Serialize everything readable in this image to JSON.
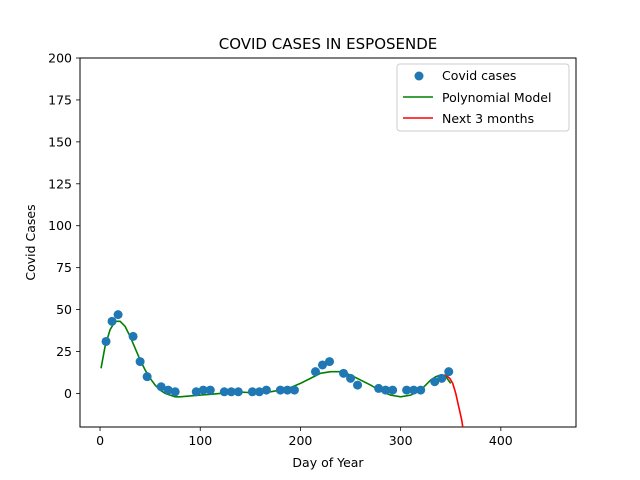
{
  "chart_data": {
    "type": "scatter",
    "title": "COVID CASES IN ESPOSENDE",
    "xlabel": "Day of Year",
    "ylabel": "Covid Cases",
    "xlim": [
      -20,
      475
    ],
    "ylim": [
      -20,
      200
    ],
    "xticks": [
      0,
      100,
      200,
      300,
      400
    ],
    "yticks": [
      0,
      25,
      50,
      75,
      100,
      125,
      150,
      175,
      200
    ],
    "legend_position": "top-right",
    "series": [
      {
        "name": "Covid cases",
        "kind": "markers",
        "color": "#1f77b4",
        "x": [
          6,
          12,
          18,
          33,
          40,
          47,
          61,
          68,
          75,
          96,
          103,
          110,
          124,
          131,
          138,
          152,
          159,
          166,
          180,
          187,
          194,
          215,
          222,
          229,
          243,
          250,
          257,
          278,
          285,
          292,
          306,
          313,
          320,
          334,
          341,
          348
        ],
        "y": [
          31,
          43,
          47,
          34,
          19,
          10,
          4,
          2,
          1,
          1,
          2,
          2,
          1,
          1,
          1,
          1,
          1,
          2,
          2,
          2,
          2,
          13,
          17,
          19,
          12,
          9,
          5,
          3,
          2,
          2,
          2,
          2,
          2,
          7,
          9,
          13
        ]
      },
      {
        "name": "Polynomial Model",
        "kind": "line",
        "color": "#008000",
        "x": [
          1,
          5,
          10,
          15,
          20,
          25,
          30,
          35,
          40,
          45,
          50,
          55,
          60,
          65,
          70,
          75,
          80,
          90,
          100,
          110,
          120,
          130,
          140,
          150,
          160,
          170,
          180,
          190,
          200,
          210,
          220,
          230,
          240,
          250,
          260,
          270,
          280,
          290,
          300,
          310,
          320,
          325,
          330,
          335,
          340,
          345,
          350
        ],
        "y": [
          15,
          28,
          38,
          43,
          43,
          40,
          34,
          27,
          20,
          14,
          9,
          5,
          2,
          0,
          -1,
          -2,
          -2,
          -1.5,
          -1,
          -0.5,
          0,
          0.5,
          0.8,
          0.5,
          0.5,
          1,
          2,
          3.5,
          6,
          9,
          12,
          13,
          13,
          11,
          8,
          5,
          1.5,
          -1,
          -2,
          -1,
          2,
          5,
          8,
          10,
          11,
          10,
          6
        ]
      },
      {
        "name": "Next 3 months",
        "kind": "line",
        "color": "#ff0000",
        "x": [
          343,
          346,
          349,
          352,
          355,
          358,
          361,
          362
        ],
        "y": [
          11,
          10.5,
          9,
          6,
          0,
          -8,
          -16,
          -20
        ]
      }
    ]
  }
}
